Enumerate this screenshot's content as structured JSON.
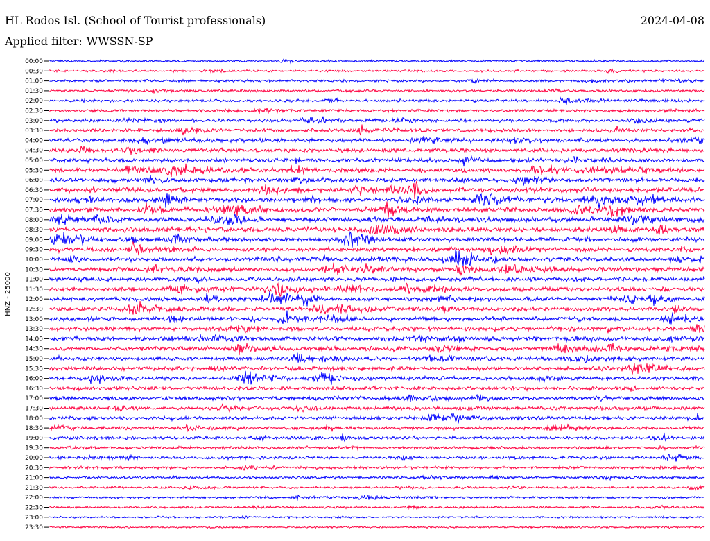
{
  "header": {
    "station": "HL Rodos Isl. (School of Tourist professionals)",
    "date": "2024-04-08",
    "filter_prefix": "Applied filter:",
    "filter_value": "WWSSN-SP"
  },
  "chart_data": {
    "type": "line",
    "title": "HL Rodos Isl. (School of Tourist professionals)",
    "ylabel": "HNZ - 25000",
    "xlabel": "",
    "series_colors": [
      "#0000ff",
      "#ff0040"
    ],
    "color_order": "alternating, blue first",
    "grid": false,
    "rows": [
      {
        "label": "00:00",
        "amplitude": 0.15
      },
      {
        "label": "00:30",
        "amplitude": 0.2
      },
      {
        "label": "01:00",
        "amplitude": 0.25
      },
      {
        "label": "01:30",
        "amplitude": 0.25
      },
      {
        "label": "02:00",
        "amplitude": 0.3
      },
      {
        "label": "02:30",
        "amplitude": 0.3
      },
      {
        "label": "03:00",
        "amplitude": 0.4
      },
      {
        "label": "03:30",
        "amplitude": 0.45
      },
      {
        "label": "04:00",
        "amplitude": 0.5
      },
      {
        "label": "04:30",
        "amplitude": 0.5
      },
      {
        "label": "05:00",
        "amplitude": 0.55
      },
      {
        "label": "05:30",
        "amplitude": 0.6
      },
      {
        "label": "06:00",
        "amplitude": 0.6
      },
      {
        "label": "06:30",
        "amplitude": 0.65
      },
      {
        "label": "07:00",
        "amplitude": 0.65
      },
      {
        "label": "07:30",
        "amplitude": 0.65
      },
      {
        "label": "08:00",
        "amplitude": 0.65
      },
      {
        "label": "08:30",
        "amplitude": 0.65
      },
      {
        "label": "09:00",
        "amplitude": 0.6
      },
      {
        "label": "09:30",
        "amplitude": 0.6
      },
      {
        "label": "10:00",
        "amplitude": 0.6
      },
      {
        "label": "10:30",
        "amplitude": 0.6
      },
      {
        "label": "11:00",
        "amplitude": 0.6
      },
      {
        "label": "11:30",
        "amplitude": 0.6
      },
      {
        "label": "12:00",
        "amplitude": 0.6
      },
      {
        "label": "12:30",
        "amplitude": 0.6
      },
      {
        "label": "13:00",
        "amplitude": 0.55
      },
      {
        "label": "13:30",
        "amplitude": 0.55
      },
      {
        "label": "14:00",
        "amplitude": 0.55
      },
      {
        "label": "14:30",
        "amplitude": 0.55
      },
      {
        "label": "15:00",
        "amplitude": 0.55
      },
      {
        "label": "15:30",
        "amplitude": 0.55
      },
      {
        "label": "16:00",
        "amplitude": 0.5
      },
      {
        "label": "16:30",
        "amplitude": 0.5
      },
      {
        "label": "17:00",
        "amplitude": 0.45
      },
      {
        "label": "17:30",
        "amplitude": 0.45
      },
      {
        "label": "18:00",
        "amplitude": 0.45
      },
      {
        "label": "18:30",
        "amplitude": 0.4
      },
      {
        "label": "19:00",
        "amplitude": 0.4
      },
      {
        "label": "19:30",
        "amplitude": 0.35
      },
      {
        "label": "20:00",
        "amplitude": 0.3
      },
      {
        "label": "20:30",
        "amplitude": 0.3
      },
      {
        "label": "21:00",
        "amplitude": 0.25
      },
      {
        "label": "21:30",
        "amplitude": 0.22
      },
      {
        "label": "22:00",
        "amplitude": 0.2
      },
      {
        "label": "22:30",
        "amplitude": 0.18
      },
      {
        "label": "23:00",
        "amplitude": 0.15
      },
      {
        "label": "23:30",
        "amplitude": 0.12
      }
    ]
  }
}
